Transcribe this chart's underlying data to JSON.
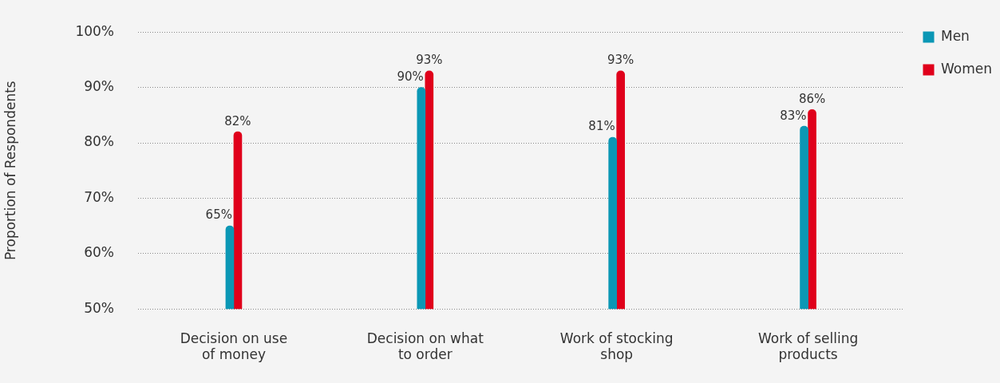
{
  "chart_data": {
    "type": "bar",
    "ylabel": "Proportion of Respondents",
    "categories": [
      "Decision on use of money",
      "Decision on what to order",
      "Work of stocking shop",
      "Work of selling products"
    ],
    "series": [
      {
        "name": "Men",
        "color": "#0b97b5",
        "values": [
          65,
          90,
          81,
          83
        ],
        "value_labels": [
          "65%",
          "90%",
          "81%",
          "83%"
        ]
      },
      {
        "name": "Women",
        "color": "#e0001b",
        "values": [
          82,
          93,
          93,
          86
        ],
        "value_labels": [
          "82%",
          "93%",
          "93%",
          "86%"
        ]
      }
    ],
    "ylim": [
      50,
      100
    ],
    "yticks": [
      {
        "value": 50,
        "label": "50%"
      },
      {
        "value": 60,
        "label": "60%"
      },
      {
        "value": 70,
        "label": "70%"
      },
      {
        "value": 80,
        "label": "80%"
      },
      {
        "value": 90,
        "label": "90%"
      },
      {
        "value": 100,
        "label": "100%"
      }
    ],
    "grid": "y",
    "legend": "top right"
  }
}
